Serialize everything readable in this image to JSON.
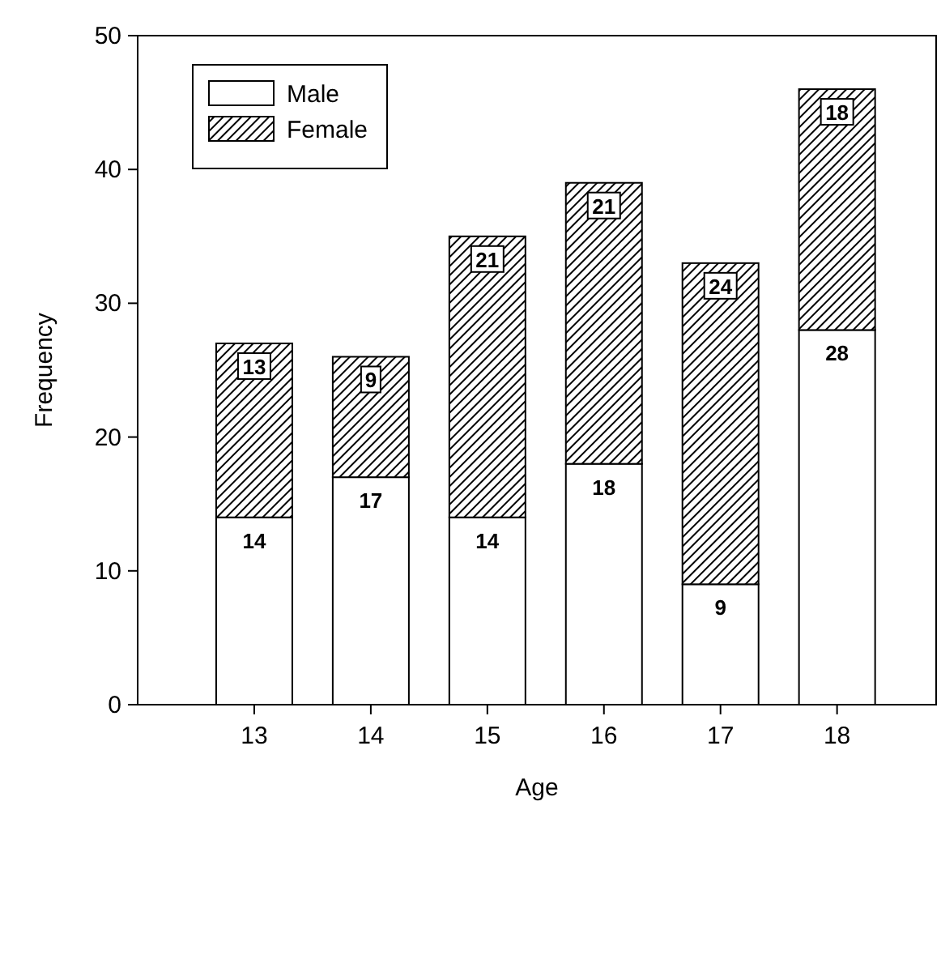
{
  "chart_data": {
    "type": "bar",
    "xlabel": "Age",
    "ylabel": "Frequency",
    "categories": [
      "13",
      "14",
      "15",
      "16",
      "17",
      "18"
    ],
    "stacked": true,
    "data_labels": true,
    "legend": "top left",
    "ylim": [
      0,
      50
    ],
    "yticks": [
      0,
      10,
      20,
      30,
      40,
      50
    ],
    "series": [
      {
        "name": "Male",
        "color": "#ffffff",
        "values": [
          14,
          17,
          14,
          18,
          9,
          28
        ]
      },
      {
        "name": "Female",
        "color": "#000000",
        "values": [
          13,
          9,
          21,
          21,
          24,
          18
        ]
      }
    ]
  }
}
